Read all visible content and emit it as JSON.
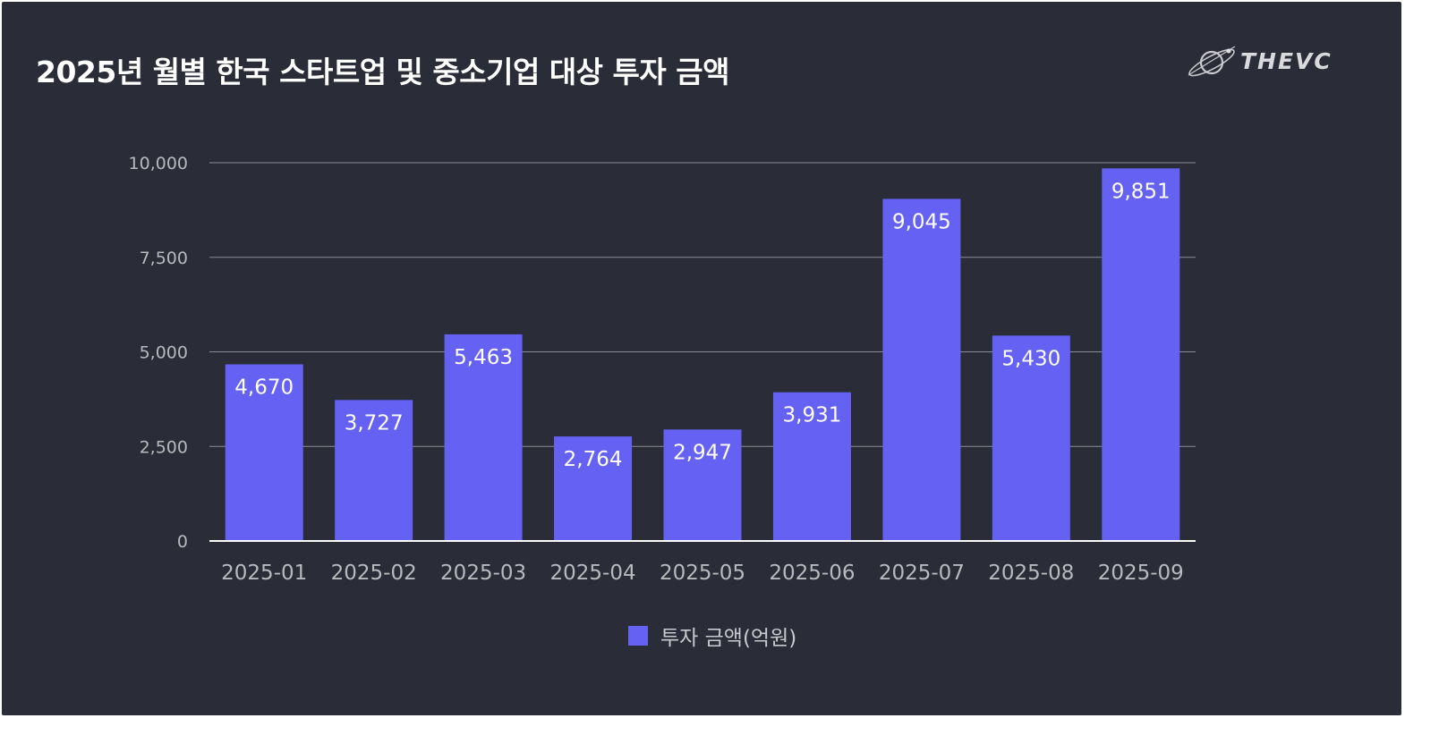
{
  "title": "2025년 월별 한국 스타트업 및 중소기업 대상 투자 금액",
  "logo": {
    "text": "THEVC",
    "icon": "globe-orbit-icon"
  },
  "colors": {
    "background": "#2a2d37",
    "bar": "#6461f3",
    "grid": "#8c8e96",
    "axis": "#ffffff",
    "tick_text": "#b8b9be",
    "data_label": "#ffffff"
  },
  "chart_data": {
    "type": "bar",
    "title": "2025년 월별 한국 스타트업 및 중소기업 대상 투자 금액",
    "categories": [
      "2025-01",
      "2025-02",
      "2025-03",
      "2025-04",
      "2025-05",
      "2025-06",
      "2025-07",
      "2025-08",
      "2025-09"
    ],
    "series": [
      {
        "name": "투자 금액(억원)",
        "values": [
          4670,
          3727,
          5463,
          2764,
          2947,
          3931,
          9045,
          5430,
          9851
        ]
      }
    ],
    "value_labels": [
      "4,670",
      "3,727",
      "5,463",
      "2,764",
      "2,947",
      "3,931",
      "9,045",
      "5,430",
      "9,851"
    ],
    "ylim": [
      0,
      10000
    ],
    "yticks": [
      0,
      2500,
      5000,
      7500,
      10000
    ],
    "ytick_labels": [
      "0",
      "2,500",
      "5,000",
      "7,500",
      "10,000"
    ],
    "xlabel": "",
    "ylabel": "",
    "grid": true,
    "legend_position": "bottom-center"
  }
}
